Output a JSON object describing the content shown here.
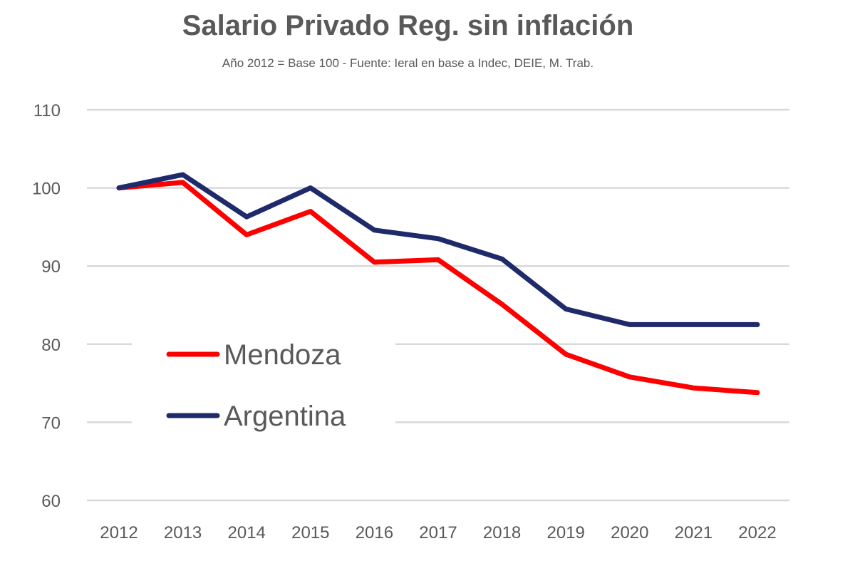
{
  "chart_data": {
    "type": "line",
    "title": "Salario Privado Reg. sin inflación",
    "subtitle": "Año 2012 = Base 100 - Fuente: Ieral en base a Indec, DEIE, M. Trab.",
    "xlabel": "",
    "ylabel": "",
    "x": [
      "2012",
      "2013",
      "2014",
      "2015",
      "2016",
      "2017",
      "2018",
      "2019",
      "2020",
      "2021",
      "2022"
    ],
    "ylim": [
      60,
      110
    ],
    "yticks": [
      60,
      70,
      80,
      90,
      100,
      110
    ],
    "grid": true,
    "legend_position": "center-left",
    "series": [
      {
        "name": "Mendoza",
        "color": "#ff0000",
        "values": [
          100,
          100.7,
          94.0,
          97.0,
          90.5,
          90.8,
          85.1,
          78.7,
          75.8,
          74.4,
          73.8
        ]
      },
      {
        "name": "Argentina",
        "color": "#1f2a6b",
        "values": [
          100,
          101.7,
          96.3,
          100.0,
          94.6,
          93.5,
          90.9,
          84.5,
          82.5,
          82.5,
          82.5
        ]
      }
    ]
  }
}
